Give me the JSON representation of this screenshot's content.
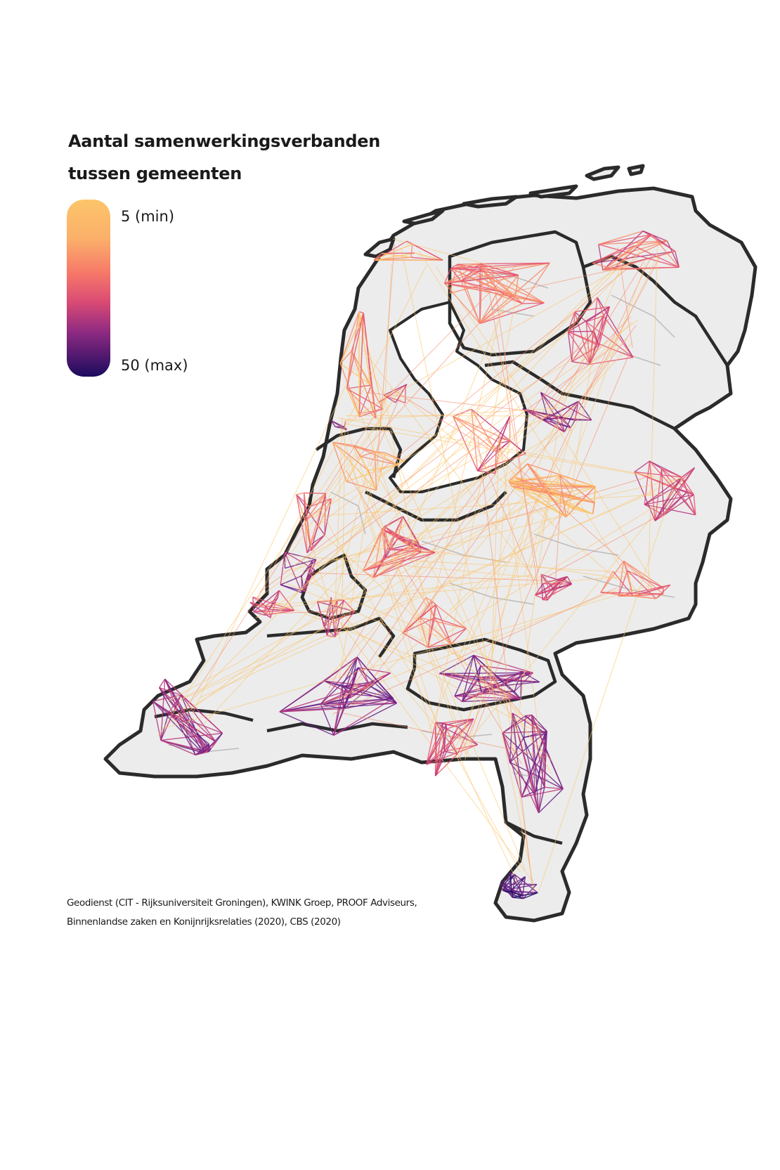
{
  "title_line1": "Aantal samenwerkingsverbanden",
  "title_line2": "tussen gemeenten",
  "legend": {
    "min_label": "5 (min)",
    "max_label": "50 (max)",
    "min_value": 5,
    "max_value": 50,
    "colors": [
      "#fcc56a",
      "#f98a68",
      "#e6546e",
      "#b6357d",
      "#6a1f86",
      "#1b0b5e"
    ]
  },
  "source_line1": "Geodienst (CIT - Rijksuniversiteit Groningen),  KWINK Groep,  PROOF Adviseurs,",
  "source_line2": "Binnenlandse zaken en Konijnrijksrelaties (2020),  CBS (2020)",
  "map": {
    "land_color": "#ececec",
    "border_color": "#2b2b2b",
    "municipality_border_color": "#bcbcbc"
  }
}
